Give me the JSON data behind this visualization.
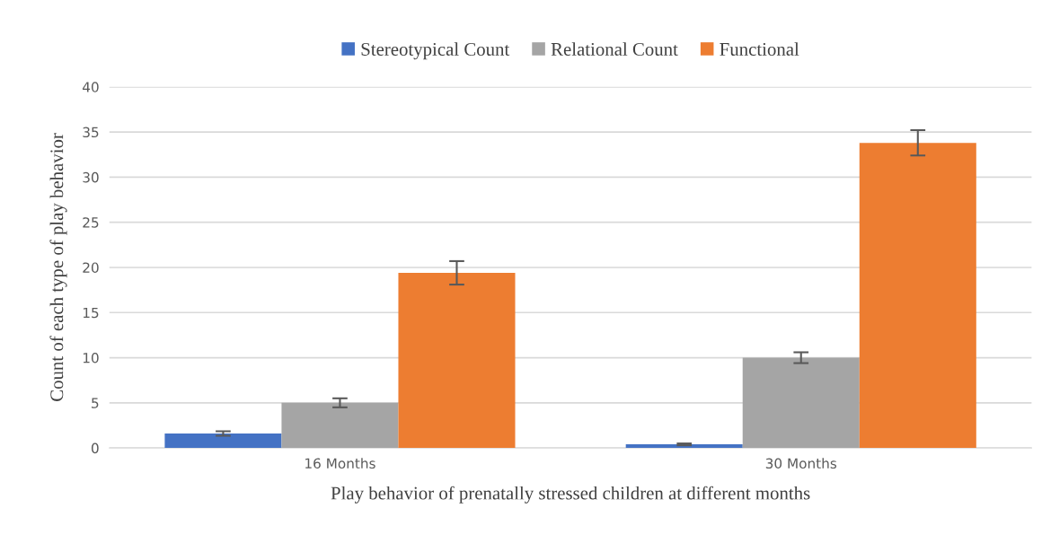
{
  "chart_data": {
    "type": "bar",
    "xlabel": "Play behavior of prenatally stressed children at different months",
    "ylabel": "Count of each type of play behavior",
    "categories": [
      "16 Months",
      "30 Months"
    ],
    "series": [
      {
        "name": "Stereotypical Count",
        "color": "#4472c4",
        "values": [
          1.6,
          0.4
        ],
        "errors": [
          0.25,
          0.1
        ]
      },
      {
        "name": "Relational Count",
        "color": "#a5a5a5",
        "values": [
          5.0,
          10.0
        ],
        "errors": [
          0.5,
          0.6
        ]
      },
      {
        "name": "Functional",
        "color": "#ed7d31",
        "values": [
          19.4,
          33.8
        ],
        "errors": [
          1.3,
          1.4
        ]
      }
    ],
    "ylim": [
      0,
      40
    ],
    "yticks": [
      0,
      5,
      10,
      15,
      20,
      25,
      30,
      35,
      40
    ],
    "grid": "y",
    "legend": "top"
  }
}
